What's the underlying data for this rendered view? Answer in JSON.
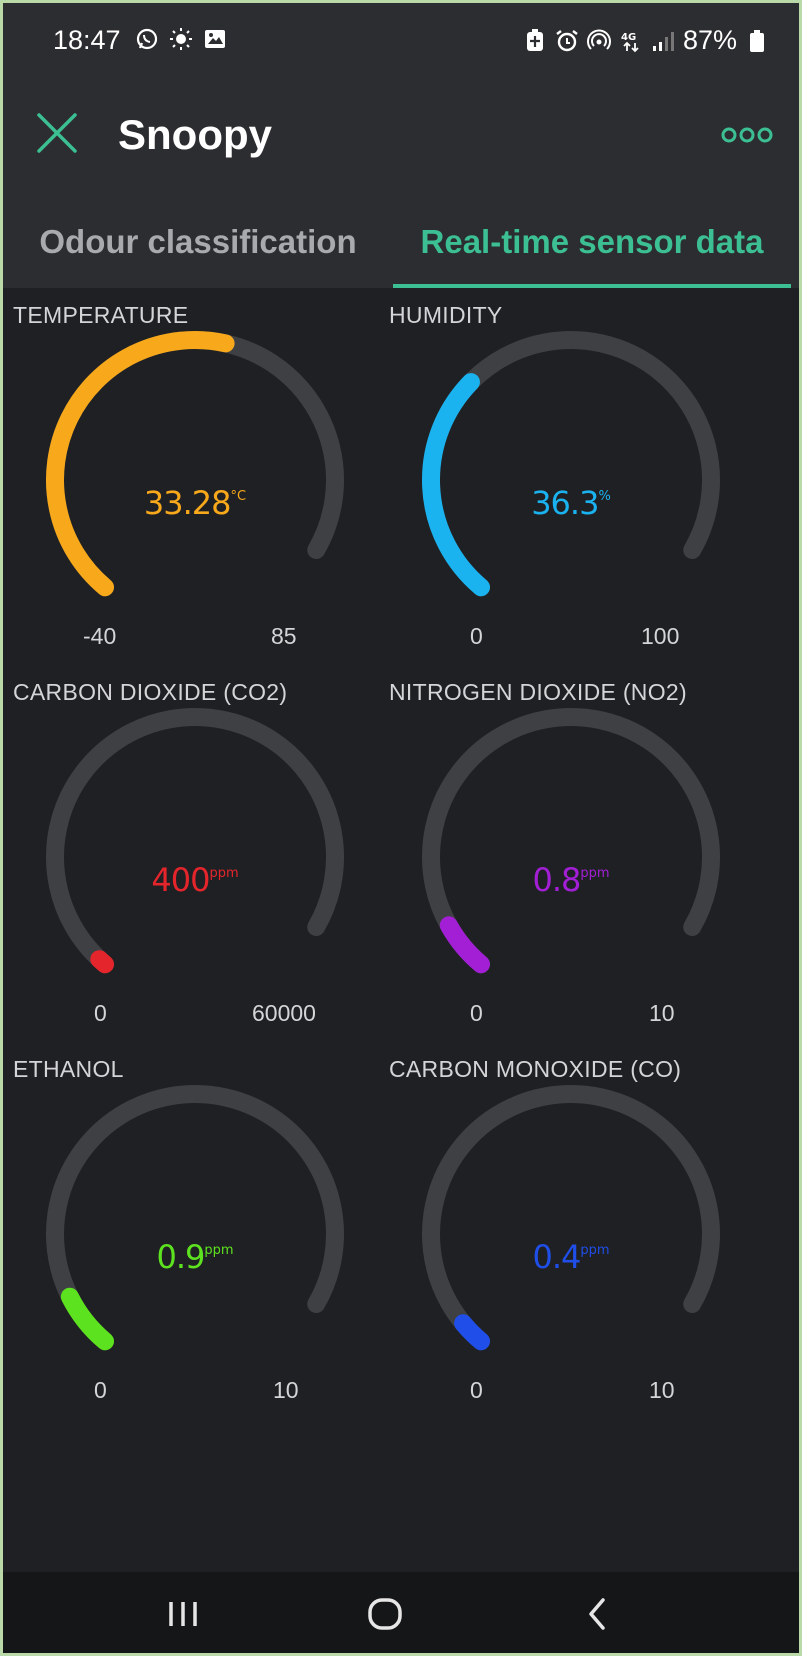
{
  "status_bar": {
    "time": "18:47",
    "battery": "87%",
    "left_icons": [
      "whatsapp-icon",
      "brightness-icon",
      "gallery-icon"
    ],
    "right_icons": [
      "battery-saver-icon",
      "alarm-icon",
      "hotspot-icon",
      "4g-data-icon",
      "signal-icon",
      "battery-icon"
    ]
  },
  "app": {
    "title": "Snoopy",
    "accent_color": "#3cbf93"
  },
  "tabs": [
    {
      "label": "Odour classification",
      "active": false
    },
    {
      "label": "Real-time sensor data",
      "active": true
    }
  ],
  "gauges": [
    {
      "title": "TEMPERATURE",
      "value": "33.28",
      "unit": "°C",
      "min": "-40",
      "max": "85",
      "fraction": 0.587,
      "color": "#f7a81b"
    },
    {
      "title": "HUMIDITY",
      "value": "36.3",
      "unit": "%",
      "min": "0",
      "max": "100",
      "fraction": 0.363,
      "color": "#1ab3f0"
    },
    {
      "title": "CARBON DIOXIDE (CO2)",
      "value": "400",
      "unit": "ppm",
      "min": "0",
      "max": "60000",
      "fraction": 0.007,
      "color": "#e5252c"
    },
    {
      "title": "NITROGEN DIOXIDE (NO2)",
      "value": "0.8",
      "unit": "ppm",
      "min": "0",
      "max": "10",
      "fraction": 0.08,
      "color": "#a31fd6"
    },
    {
      "title": "ETHANOL",
      "value": "0.9",
      "unit": "ppm",
      "min": "0",
      "max": "10",
      "fraction": 0.09,
      "color": "#5de21f"
    },
    {
      "title": "CARBON MONOXIDE (CO)",
      "value": "0.4",
      "unit": "ppm",
      "min": "0",
      "max": "10",
      "fraction": 0.04,
      "color": "#1f4ee8"
    }
  ],
  "nav_bar": {
    "buttons": [
      "recents-icon",
      "home-icon",
      "back-icon"
    ]
  }
}
